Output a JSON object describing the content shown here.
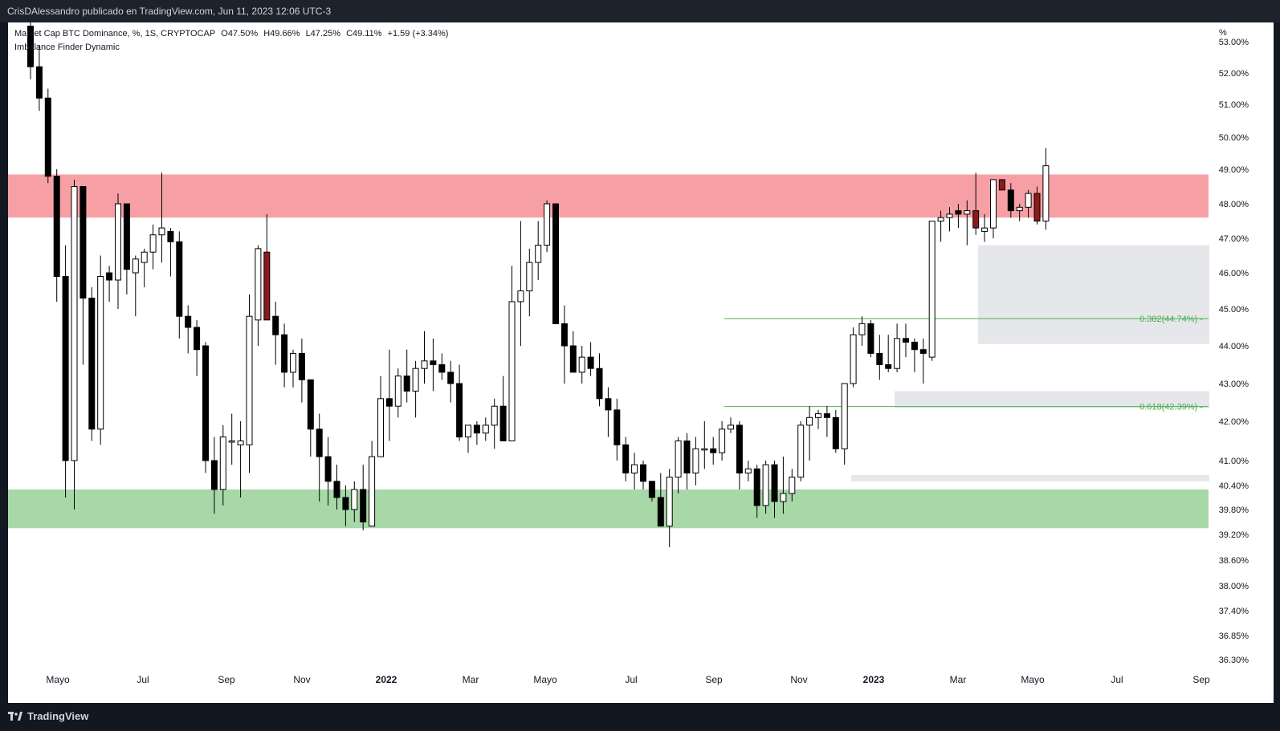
{
  "header": {
    "publisher": "CrisDAlessandro publicado en TradingView.com, Jun 11, 2023 12:06 UTC-3"
  },
  "legend": {
    "symbol": "Market Cap BTC Dominance, %, 1S, CRYPTOCAP",
    "open": "O47.50%",
    "high": "H49.66%",
    "low": "L47.25%",
    "close": "C49.11%",
    "change": "+1.59 (+3.34%)",
    "indicator": "Imbalance Finder Dynamic"
  },
  "footer": {
    "brand": "TradingView"
  },
  "colors": {
    "resistance_zone": "#f6a0a6",
    "support_zone": "#a8d8a8",
    "fib_line": "#4caf50",
    "imbalance": "#e6e7ea",
    "up_candle": "#ffffff",
    "down_candle": "#000000",
    "highlight_candle": "#8b1a1a"
  },
  "chart_data": {
    "type": "candlestick",
    "title": "Market Cap BTC Dominance, %, 1S, CRYPTOCAP",
    "y_unit": "%",
    "y_axis_ticks": [
      "53.00%",
      "52.00%",
      "51.00%",
      "50.00%",
      "49.00%",
      "48.00%",
      "47.00%",
      "46.00%",
      "45.00%",
      "44.00%",
      "43.00%",
      "42.00%",
      "41.00%",
      "40.40%",
      "39.80%",
      "39.20%",
      "38.60%",
      "38.00%",
      "37.40%",
      "36.85%",
      "36.30%"
    ],
    "x_axis_ticks": [
      "Mayo",
      "Jul",
      "Sep",
      "Nov",
      "2022",
      "Mar",
      "Mayo",
      "Jul",
      "Sep",
      "Nov",
      "2023",
      "Mar",
      "Mayo",
      "Jul",
      "Sep"
    ],
    "zones": [
      {
        "name": "resistance",
        "low": 47.6,
        "high": 48.85
      },
      {
        "name": "support",
        "low": 39.35,
        "high": 40.3
      }
    ],
    "fib_levels": [
      {
        "label": "0.382(44.74%)",
        "value": 44.74
      },
      {
        "label": "0.618(42.39%)",
        "value": 42.39
      }
    ],
    "imbalance_boxes": [
      {
        "start": "2023-03",
        "end": "2023-06",
        "low": 44.05,
        "high": 46.8
      },
      {
        "start": "2023-01",
        "end": "2023-06",
        "low": 42.35,
        "high": 42.8
      },
      {
        "start": "2022-11",
        "end": "2023-06",
        "low": 40.5,
        "high": 40.65
      }
    ],
    "candles": [
      [
        53.5,
        54.3,
        51.8,
        52.2
      ],
      [
        52.2,
        52.9,
        50.8,
        51.2
      ],
      [
        51.2,
        51.5,
        48.6,
        48.8
      ],
      [
        48.8,
        49.0,
        45.2,
        45.9
      ],
      [
        45.9,
        46.8,
        40.1,
        41.0
      ],
      [
        41.0,
        48.7,
        39.8,
        48.5
      ],
      [
        48.5,
        48.5,
        43.5,
        45.3
      ],
      [
        45.3,
        45.6,
        41.5,
        41.8
      ],
      [
        41.8,
        46.5,
        41.4,
        45.9
      ],
      [
        46.0,
        46.2,
        45.2,
        45.8
      ],
      [
        45.8,
        48.3,
        45.0,
        48.0
      ],
      [
        48.0,
        48.0,
        45.4,
        46.1
      ],
      [
        46.0,
        46.5,
        44.8,
        46.4
      ],
      [
        46.3,
        46.7,
        45.6,
        46.6
      ],
      [
        46.6,
        47.4,
        46.1,
        47.1
      ],
      [
        47.1,
        48.9,
        46.3,
        47.3
      ],
      [
        47.2,
        47.3,
        45.9,
        46.9
      ],
      [
        46.9,
        47.2,
        44.2,
        44.8
      ],
      [
        44.8,
        45.1,
        43.8,
        44.5
      ],
      [
        44.5,
        44.7,
        43.2,
        43.9
      ],
      [
        44.0,
        44.1,
        40.7,
        41.0
      ],
      [
        41.0,
        41.6,
        39.7,
        40.3
      ],
      [
        40.3,
        41.9,
        39.9,
        41.6
      ],
      [
        41.5,
        42.2,
        40.9,
        41.5
      ],
      [
        41.4,
        42.0,
        40.1,
        41.5
      ],
      [
        41.4,
        45.4,
        40.7,
        44.8
      ],
      [
        44.7,
        46.8,
        44.0,
        46.7
      ],
      [
        46.6,
        47.7,
        44.8,
        44.7
      ],
      [
        44.8,
        45.2,
        43.5,
        44.3
      ],
      [
        44.3,
        44.6,
        42.9,
        43.3
      ],
      [
        43.3,
        43.9,
        42.9,
        43.8
      ],
      [
        43.8,
        44.2,
        42.5,
        43.1
      ],
      [
        43.1,
        43.1,
        41.1,
        41.8
      ],
      [
        41.8,
        42.2,
        40.0,
        41.1
      ],
      [
        41.1,
        41.6,
        39.9,
        40.5
      ],
      [
        40.5,
        40.9,
        39.8,
        40.1
      ],
      [
        40.1,
        40.4,
        39.4,
        39.8
      ],
      [
        39.8,
        40.5,
        39.5,
        40.3
      ],
      [
        40.3,
        40.9,
        39.3,
        39.5
      ],
      [
        39.4,
        41.5,
        39.4,
        41.1
      ],
      [
        41.1,
        43.2,
        41.2,
        42.6
      ],
      [
        42.6,
        43.9,
        41.5,
        42.4
      ],
      [
        42.4,
        43.4,
        42.1,
        43.2
      ],
      [
        43.2,
        43.9,
        42.5,
        42.8
      ],
      [
        42.8,
        43.6,
        42.1,
        43.4
      ],
      [
        43.4,
        44.4,
        43.0,
        43.6
      ],
      [
        43.6,
        44.2,
        42.8,
        43.5
      ],
      [
        43.5,
        43.8,
        43.1,
        43.3
      ],
      [
        43.3,
        43.6,
        42.5,
        43.0
      ],
      [
        43.0,
        43.5,
        41.5,
        41.6
      ],
      [
        41.6,
        41.9,
        41.2,
        41.9
      ],
      [
        41.9,
        42.0,
        41.4,
        41.7
      ],
      [
        41.7,
        42.1,
        41.5,
        41.9
      ],
      [
        41.9,
        42.6,
        41.3,
        42.4
      ],
      [
        42.4,
        43.2,
        41.5,
        41.5
      ],
      [
        41.5,
        46.2,
        41.6,
        45.2
      ],
      [
        45.2,
        47.5,
        44.0,
        45.5
      ],
      [
        45.5,
        46.7,
        44.8,
        46.3
      ],
      [
        46.3,
        47.5,
        45.8,
        46.8
      ],
      [
        46.8,
        48.1,
        46.6,
        48.0
      ],
      [
        48.0,
        48.0,
        44.7,
        44.6
      ],
      [
        44.6,
        45.1,
        43.0,
        44.0
      ],
      [
        44.0,
        44.4,
        43.3,
        43.3
      ],
      [
        43.3,
        44.0,
        43.0,
        43.7
      ],
      [
        43.7,
        44.1,
        43.2,
        43.4
      ],
      [
        43.4,
        43.8,
        42.4,
        42.6
      ],
      [
        42.6,
        42.9,
        41.6,
        42.3
      ],
      [
        42.3,
        42.6,
        41.0,
        41.4
      ],
      [
        41.4,
        41.6,
        40.5,
        40.7
      ],
      [
        40.7,
        41.2,
        40.3,
        40.9
      ],
      [
        40.9,
        41.0,
        40.3,
        40.5
      ],
      [
        40.5,
        40.5,
        40.0,
        40.1
      ],
      [
        40.1,
        40.7,
        39.5,
        39.4
      ],
      [
        39.4,
        40.8,
        38.9,
        40.6
      ],
      [
        40.6,
        41.6,
        40.2,
        41.5
      ],
      [
        41.5,
        41.7,
        40.3,
        40.7
      ],
      [
        40.7,
        41.6,
        40.4,
        41.3
      ],
      [
        41.3,
        42.0,
        40.8,
        41.3
      ],
      [
        41.3,
        41.6,
        40.9,
        41.2
      ],
      [
        41.2,
        42.0,
        41.0,
        41.8
      ],
      [
        41.8,
        42.1,
        41.7,
        41.9
      ],
      [
        41.9,
        42.0,
        40.3,
        40.7
      ],
      [
        40.7,
        41.0,
        40.5,
        40.8
      ],
      [
        40.8,
        40.9,
        39.6,
        39.9
      ],
      [
        39.9,
        41.0,
        39.7,
        40.9
      ],
      [
        40.9,
        41.0,
        39.6,
        40.0
      ],
      [
        40.0,
        41.1,
        39.7,
        40.2
      ],
      [
        40.2,
        40.8,
        40.0,
        40.6
      ],
      [
        40.6,
        42.0,
        40.5,
        41.9
      ],
      [
        41.9,
        42.4,
        41.0,
        42.1
      ],
      [
        42.1,
        42.3,
        41.8,
        42.2
      ],
      [
        42.2,
        42.4,
        41.6,
        42.1
      ],
      [
        42.1,
        42.3,
        41.2,
        41.3
      ],
      [
        41.3,
        42.9,
        40.9,
        43.0
      ],
      [
        43.0,
        44.5,
        42.9,
        44.3
      ],
      [
        44.3,
        44.8,
        44.0,
        44.6
      ],
      [
        44.6,
        44.7,
        43.7,
        43.8
      ],
      [
        43.8,
        44.3,
        43.1,
        43.5
      ],
      [
        43.5,
        44.3,
        43.3,
        43.4
      ],
      [
        43.4,
        44.6,
        43.3,
        44.2
      ],
      [
        44.2,
        44.6,
        43.7,
        44.1
      ],
      [
        44.1,
        44.2,
        43.3,
        43.9
      ],
      [
        43.9,
        44.2,
        43.0,
        43.8
      ],
      [
        43.7,
        47.4,
        43.6,
        47.5
      ],
      [
        47.5,
        47.8,
        46.9,
        47.6
      ],
      [
        47.6,
        47.9,
        47.2,
        47.7
      ],
      [
        47.8,
        48.0,
        47.3,
        47.7
      ],
      [
        47.7,
        48.1,
        46.8,
        47.8
      ],
      [
        47.8,
        48.9,
        47.1,
        47.3
      ],
      [
        47.2,
        47.7,
        46.9,
        47.3
      ],
      [
        47.3,
        48.7,
        47.0,
        48.7
      ],
      [
        48.7,
        48.7,
        48.4,
        48.4
      ],
      [
        48.4,
        48.6,
        47.6,
        47.8
      ],
      [
        47.8,
        48.0,
        47.5,
        47.9
      ],
      [
        47.9,
        48.4,
        47.6,
        48.3
      ],
      [
        48.3,
        48.5,
        47.4,
        47.5
      ],
      [
        47.5,
        49.66,
        47.25,
        49.11
      ]
    ],
    "highlighted_candles": [
      27,
      108,
      111,
      115
    ]
  }
}
